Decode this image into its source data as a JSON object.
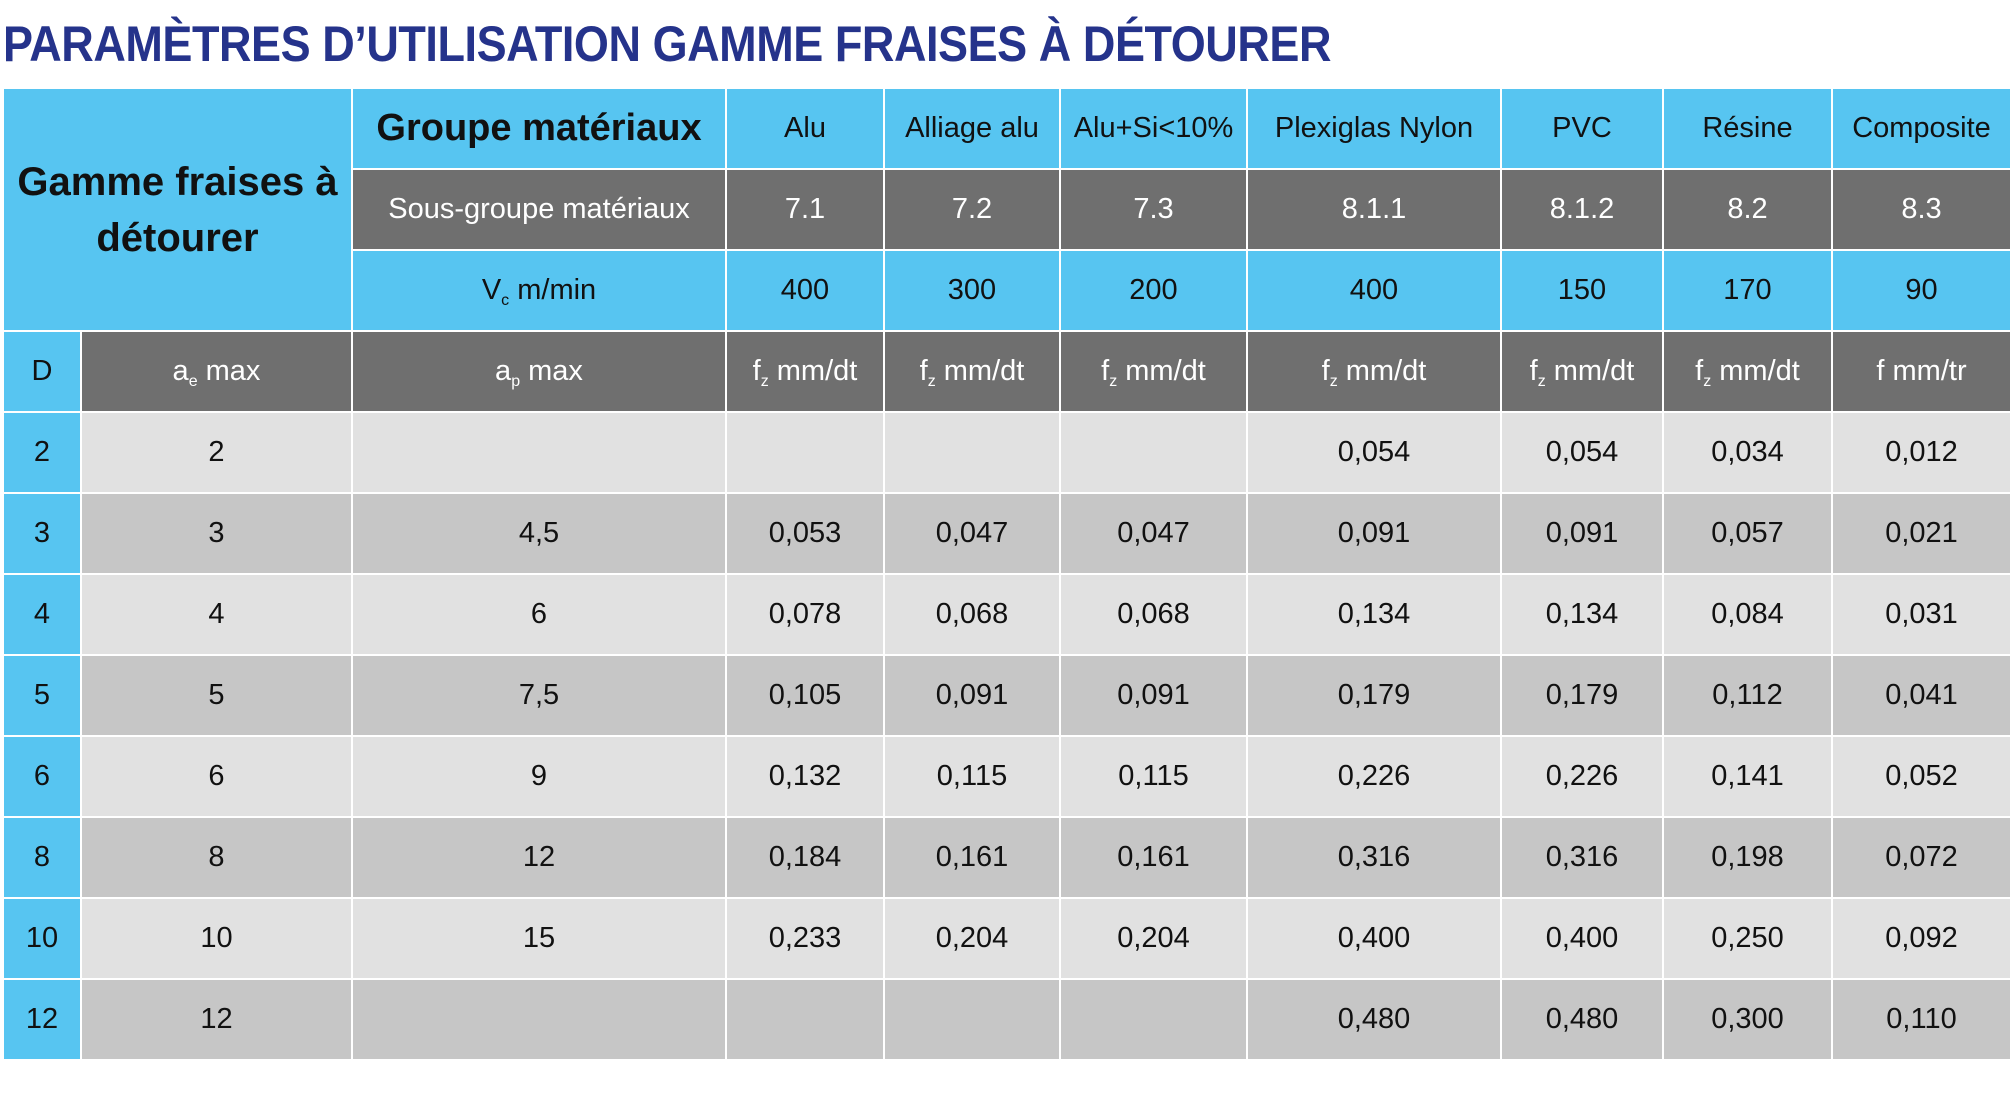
{
  "title": "PARAMÈTRES D’UTILISATION GAMME FRAISES À DÉTOURER",
  "table": {
    "corner_title": "Gamme fraises à détourer",
    "group_label": "Groupe matériaux",
    "subgroup_label": "Sous-groupe matériaux",
    "vc_label": {
      "main": "V",
      "sub": "c",
      "rest": " m/min"
    },
    "materials": [
      "Alu",
      "Alliage alu",
      "Alu+Si<10%",
      "Plexiglas Nylon",
      "PVC",
      "Résine",
      "Composite"
    ],
    "subgroups": [
      "7.1",
      "7.2",
      "7.3",
      "8.1.1",
      "8.1.2",
      "8.2",
      "8.3"
    ],
    "vc_values": [
      "400",
      "300",
      "200",
      "400",
      "150",
      "170",
      "90"
    ],
    "col_headers": {
      "d": "D",
      "ae": {
        "main": "a",
        "sub": "e",
        "rest": " max"
      },
      "ap": {
        "main": "a",
        "sub": "p",
        "rest": " max"
      },
      "fz": [
        {
          "main": "f",
          "sub": "z",
          "rest": " mm/dt"
        },
        {
          "main": "f",
          "sub": "z",
          "rest": " mm/dt"
        },
        {
          "main": "f",
          "sub": "z",
          "rest": " mm/dt"
        },
        {
          "main": "f",
          "sub": "z",
          "rest": " mm/dt"
        },
        {
          "main": "f",
          "sub": "z",
          "rest": " mm/dt"
        },
        {
          "main": "f",
          "sub": "z",
          "rest": " mm/dt"
        },
        {
          "main": "f",
          "sub": "",
          "rest": " mm/tr"
        }
      ]
    },
    "rows": [
      {
        "d": "2",
        "ae": "2",
        "ap": "",
        "values": [
          "",
          "",
          "",
          "0,054",
          "0,054",
          "0,034",
          "0,012"
        ]
      },
      {
        "d": "3",
        "ae": "3",
        "ap": "4,5",
        "values": [
          "0,053",
          "0,047",
          "0,047",
          "0,091",
          "0,091",
          "0,057",
          "0,021"
        ]
      },
      {
        "d": "4",
        "ae": "4",
        "ap": "6",
        "values": [
          "0,078",
          "0,068",
          "0,068",
          "0,134",
          "0,134",
          "0,084",
          "0,031"
        ]
      },
      {
        "d": "5",
        "ae": "5",
        "ap": "7,5",
        "values": [
          "0,105",
          "0,091",
          "0,091",
          "0,179",
          "0,179",
          "0,112",
          "0,041"
        ]
      },
      {
        "d": "6",
        "ae": "6",
        "ap": "9",
        "values": [
          "0,132",
          "0,115",
          "0,115",
          "0,226",
          "0,226",
          "0,141",
          "0,052"
        ]
      },
      {
        "d": "8",
        "ae": "8",
        "ap": "12",
        "values": [
          "0,184",
          "0,161",
          "0,161",
          "0,316",
          "0,316",
          "0,198",
          "0,072"
        ]
      },
      {
        "d": "10",
        "ae": "10",
        "ap": "15",
        "values": [
          "0,233",
          "0,204",
          "0,204",
          "0,400",
          "0,400",
          "0,250",
          "0,092"
        ]
      },
      {
        "d": "12",
        "ae": "12",
        "ap": "",
        "values": [
          "",
          "",
          "",
          "0,480",
          "0,480",
          "0,300",
          "0,110"
        ]
      }
    ]
  },
  "colors": {
    "title": "#25338b",
    "header_blue": "#57c5f1",
    "header_dark": "#6f6f6f",
    "row_light": "#e1e1e1",
    "row_mid": "#c6c6c6"
  }
}
